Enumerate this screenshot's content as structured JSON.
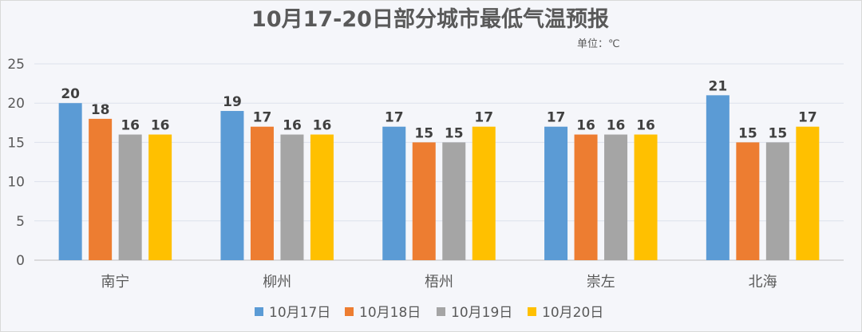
{
  "chart_data": {
    "type": "bar",
    "title": "10月17-20日部分城市最低气温预报",
    "unit_note": "单位：℃",
    "categories": [
      "南宁",
      "柳州",
      "梧州",
      "崇左",
      "北海"
    ],
    "series": [
      {
        "name": "10月17日",
        "color": "#5b9bd5",
        "values": [
          20,
          19,
          17,
          17,
          21
        ]
      },
      {
        "name": "10月18日",
        "color": "#ed7d31",
        "values": [
          18,
          17,
          15,
          16,
          15
        ]
      },
      {
        "name": "10月19日",
        "color": "#a5a5a5",
        "values": [
          16,
          16,
          15,
          16,
          15
        ]
      },
      {
        "name": "10月20日",
        "color": "#ffc000",
        "values": [
          16,
          16,
          17,
          16,
          17
        ]
      }
    ],
    "yticks": [
      "0",
      "5",
      "10",
      "15",
      "20",
      "25"
    ],
    "ylim": [
      0,
      25
    ],
    "grid": true,
    "legend_position": "bottom"
  }
}
